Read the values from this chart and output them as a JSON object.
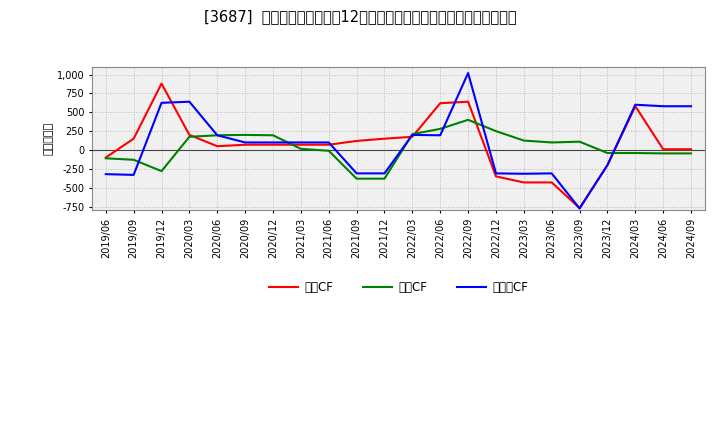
{
  "title": "[3687]  キャッシュフローの12か月移動合計の対前年同期増減額の推移",
  "ylabel": "（百万円）",
  "background_color": "#ffffff",
  "plot_bg_color": "#f0f0f0",
  "grid_color": "#bbbbbb",
  "xlabels": [
    "2019/06",
    "2019/09",
    "2019/12",
    "2020/03",
    "2020/06",
    "2020/09",
    "2020/12",
    "2021/03",
    "2021/06",
    "2021/09",
    "2021/12",
    "2022/03",
    "2022/06",
    "2022/09",
    "2022/12",
    "2023/03",
    "2023/06",
    "2023/09",
    "2023/12",
    "2024/03",
    "2024/06",
    "2024/09"
  ],
  "operating_cf": [
    -100,
    150,
    880,
    200,
    50,
    70,
    70,
    70,
    70,
    120,
    150,
    175,
    620,
    640,
    -350,
    -430,
    -430,
    -770,
    -200,
    580,
    10,
    10
  ],
  "investing_cf": [
    -110,
    -130,
    -280,
    175,
    195,
    200,
    195,
    15,
    -10,
    -380,
    -380,
    210,
    280,
    400,
    250,
    125,
    100,
    110,
    -40,
    -40,
    -45,
    -45
  ],
  "free_cf": [
    -320,
    -330,
    625,
    640,
    195,
    100,
    100,
    100,
    100,
    -310,
    -310,
    200,
    195,
    1020,
    -310,
    -315,
    -310,
    -775,
    -200,
    600,
    580,
    580
  ],
  "ylim": [
    -800,
    1100
  ],
  "yticks": [
    -750,
    -500,
    -250,
    0,
    250,
    500,
    750,
    1000
  ],
  "line_colors": {
    "operating": "#ff0000",
    "investing": "#008000",
    "free": "#0000ff"
  },
  "legend_labels": [
    "営業CF",
    "投資CF",
    "フリーCF"
  ]
}
